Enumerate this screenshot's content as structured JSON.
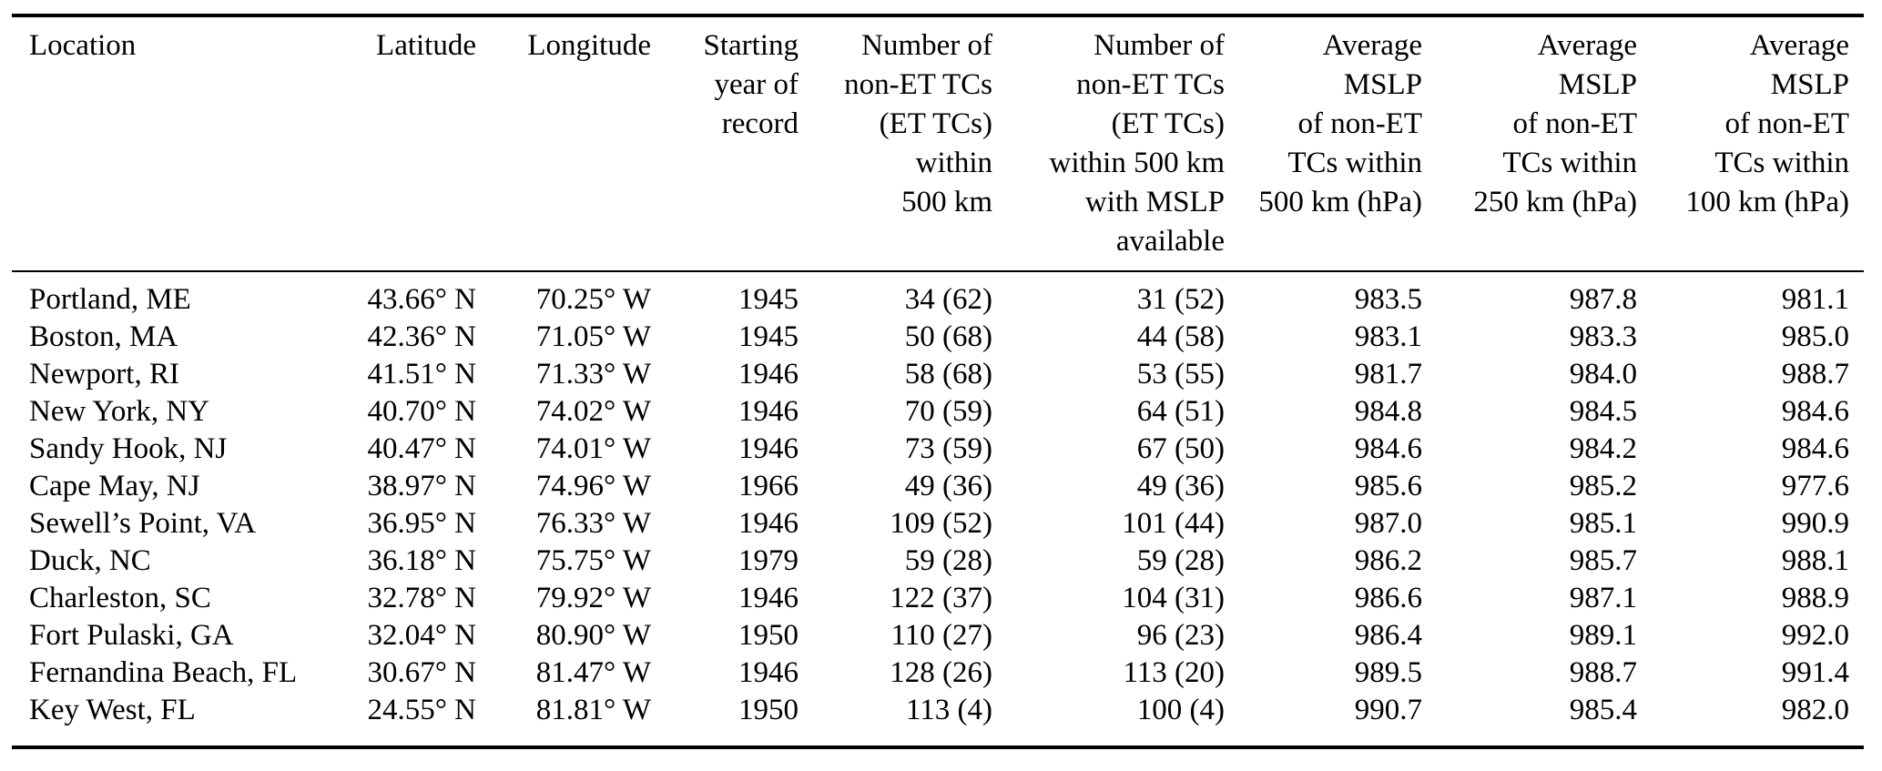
{
  "table": {
    "columns": [
      {
        "id": "location",
        "align": "left",
        "label_lines": [
          "Location"
        ]
      },
      {
        "id": "latitude",
        "align": "right",
        "label_lines": [
          "Latitude"
        ]
      },
      {
        "id": "longitude",
        "align": "right",
        "label_lines": [
          "Longitude"
        ]
      },
      {
        "id": "starting_year",
        "align": "right",
        "label_lines": [
          "Starting",
          "year of",
          "record"
        ]
      },
      {
        "id": "count_500km",
        "align": "right",
        "label_lines": [
          "Number of",
          "non-ET TCs",
          "(ET TCs)",
          "within",
          "500 km"
        ]
      },
      {
        "id": "count_500km_mslp",
        "align": "right",
        "label_lines": [
          "Number of",
          "non-ET TCs",
          "(ET TCs)",
          "within 500 km",
          "with MSLP",
          "available"
        ]
      },
      {
        "id": "avg_mslp_500km",
        "align": "right",
        "label_lines": [
          "Average",
          "MSLP",
          "of non-ET",
          "TCs within",
          "500 km (hPa)"
        ]
      },
      {
        "id": "avg_mslp_250km",
        "align": "right",
        "label_lines": [
          "Average",
          "MSLP",
          "of non-ET",
          "TCs within",
          "250 km (hPa)"
        ]
      },
      {
        "id": "avg_mslp_100km",
        "align": "right",
        "label_lines": [
          "Average",
          "MSLP",
          "of non-ET",
          "TCs within",
          "100 km (hPa)"
        ]
      }
    ],
    "rows": [
      [
        "Portland, ME",
        "43.66° N",
        "70.25° W",
        "1945",
        "34 (62)",
        "31 (52)",
        "983.5",
        "987.8",
        "981.1"
      ],
      [
        "Boston, MA",
        "42.36° N",
        "71.05° W",
        "1945",
        "50 (68)",
        "44 (58)",
        "983.1",
        "983.3",
        "985.0"
      ],
      [
        "Newport, RI",
        "41.51° N",
        "71.33° W",
        "1946",
        "58 (68)",
        "53 (55)",
        "981.7",
        "984.0",
        "988.7"
      ],
      [
        "New York, NY",
        "40.70° N",
        "74.02° W",
        "1946",
        "70 (59)",
        "64 (51)",
        "984.8",
        "984.5",
        "984.6"
      ],
      [
        "Sandy Hook, NJ",
        "40.47° N",
        "74.01° W",
        "1946",
        "73 (59)",
        "67 (50)",
        "984.6",
        "984.2",
        "984.6"
      ],
      [
        "Cape May, NJ",
        "38.97° N",
        "74.96° W",
        "1966",
        "49 (36)",
        "49 (36)",
        "985.6",
        "985.2",
        "977.6"
      ],
      [
        "Sewell’s Point, VA",
        "36.95° N",
        "76.33° W",
        "1946",
        "109 (52)",
        "101 (44)",
        "987.0",
        "985.1",
        "990.9"
      ],
      [
        "Duck, NC",
        "36.18° N",
        "75.75° W",
        "1979",
        "59 (28)",
        "59 (28)",
        "986.2",
        "985.7",
        "988.1"
      ],
      [
        "Charleston, SC",
        "32.78° N",
        "79.92° W",
        "1946",
        "122 (37)",
        "104 (31)",
        "986.6",
        "987.1",
        "988.9"
      ],
      [
        "Fort Pulaski, GA",
        "32.04° N",
        "80.90° W",
        "1950",
        "110 (27)",
        "96 (23)",
        "986.4",
        "989.1",
        "992.0"
      ],
      [
        "Fernandina Beach, FL",
        "30.67° N",
        "81.47° W",
        "1946",
        "128 (26)",
        "113 (20)",
        "989.5",
        "988.7",
        "991.4"
      ],
      [
        "Key West, FL",
        "24.55° N",
        "81.81° W",
        "1950",
        "113 (4)",
        "100 (4)",
        "990.7",
        "985.4",
        "982.0"
      ]
    ]
  }
}
